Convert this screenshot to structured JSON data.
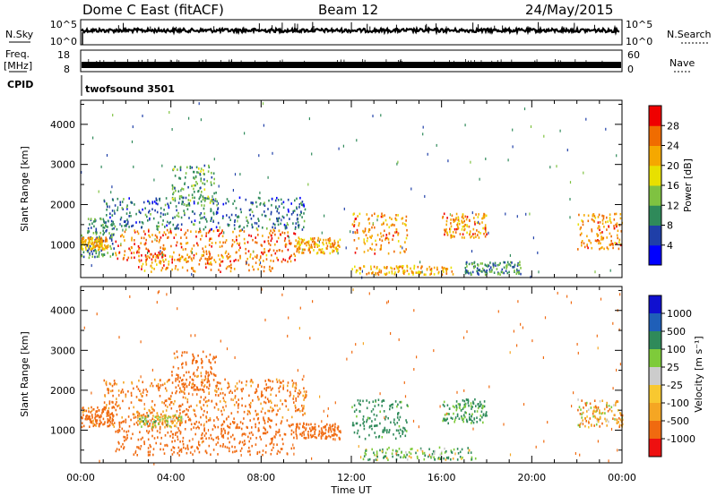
{
  "header": {
    "radar_title": "Dome C East (fitACF)",
    "beam": "Beam 12",
    "date": "24/May/2015"
  },
  "noise_panel": {
    "left_label": "N.Sky",
    "right_label": "N.Search",
    "tick_top": "10^5",
    "tick_bottom": "10^0",
    "ytype": "log"
  },
  "freq_panel": {
    "left_label_line1": "Freq.",
    "left_label_line2": "[MHz]",
    "left_tick_top": "18",
    "left_tick_bottom": "8",
    "right_label": "Nave",
    "right_tick_top": "60",
    "right_tick_bottom": "0"
  },
  "cpid_panel": {
    "label": "CPID",
    "value": "twofsound 3501"
  },
  "time_axis": {
    "label": "Time UT",
    "ticks": [
      "00:00",
      "04:00",
      "08:00",
      "12:00",
      "16:00",
      "20:00",
      "00:00"
    ],
    "hours": [
      0,
      4,
      8,
      12,
      16,
      20,
      24
    ]
  },
  "power_panel": {
    "ylabel": "Slant Range [km]",
    "yticks": [
      "1000",
      "2000",
      "3000",
      "4000"
    ],
    "colorbar_label": "Power [dB]",
    "colorbar_ticks": [
      "4",
      "8",
      "12",
      "16",
      "20",
      "24",
      "28"
    ]
  },
  "velocity_panel": {
    "ylabel": "Slant Range [km]",
    "yticks": [
      "1000",
      "2000",
      "3000",
      "4000"
    ],
    "colorbar_label": "Velocity  [m s⁻¹]",
    "colorbar_ticks": [
      "1000",
      "500",
      "100",
      "25",
      "-25",
      "-100",
      "-500",
      "-1000"
    ]
  },
  "chart_data": [
    {
      "type": "heatmap",
      "title": "Power",
      "x_units": "hours UT",
      "xlim": [
        0,
        24
      ],
      "y_units": "km",
      "ylim": [
        180,
        4600
      ],
      "colorbar": {
        "units": "dB",
        "range": [
          0,
          32
        ],
        "colors": [
          "#0000ff",
          "#1f3fa8",
          "#2f8a5a",
          "#7fc241",
          "#e8e000",
          "#f5a800",
          "#f06c00",
          "#ef0000"
        ]
      },
      "regions": [
        {
          "t": [
            0.0,
            1.5
          ],
          "r": [
            700,
            1700
          ],
          "dB": 10
        },
        {
          "t": [
            0.0,
            1.2
          ],
          "r": [
            900,
            1200
          ],
          "dB": 22
        },
        {
          "t": [
            1.0,
            10.0
          ],
          "r": [
            1400,
            2200
          ],
          "dB": 8
        },
        {
          "t": [
            1.5,
            9.5
          ],
          "r": [
            600,
            1400
          ],
          "dB": 26
        },
        {
          "t": [
            2.5,
            8.5
          ],
          "r": [
            350,
            800
          ],
          "dB": 24
        },
        {
          "t": [
            4.0,
            6.0
          ],
          "r": [
            2000,
            3000
          ],
          "dB": 12
        },
        {
          "t": [
            9.5,
            11.5
          ],
          "r": [
            800,
            1200
          ],
          "dB": 22
        },
        {
          "t": [
            12.0,
            14.5
          ],
          "r": [
            800,
            1800
          ],
          "dB": 24
        },
        {
          "t": [
            12.0,
            16.5
          ],
          "r": [
            280,
            500
          ],
          "dB": 22
        },
        {
          "t": [
            16.0,
            18.0
          ],
          "r": [
            1200,
            1800
          ],
          "dB": 24
        },
        {
          "t": [
            17.0,
            19.5
          ],
          "r": [
            280,
            600
          ],
          "dB": 10
        },
        {
          "t": [
            22.0,
            24.0
          ],
          "r": [
            900,
            1800
          ],
          "dB": 24
        }
      ]
    },
    {
      "type": "heatmap",
      "title": "Velocity",
      "x_units": "hours UT",
      "xlim": [
        0,
        24
      ],
      "y_units": "km",
      "ylim": [
        180,
        4600
      ],
      "colorbar": {
        "units": "m s-1",
        "range": [
          -1000,
          1000
        ],
        "colors": [
          "#ee1010",
          "#f06a10",
          "#f5a623",
          "#f8c830",
          "#cccccc",
          "#7ecb3a",
          "#2f8a5a",
          "#1f5fb8",
          "#1010d0"
        ]
      },
      "regions": [
        {
          "t": [
            0.0,
            1.5
          ],
          "r": [
            1100,
            1600
          ],
          "v": -200
        },
        {
          "t": [
            1.0,
            10.0
          ],
          "r": [
            1300,
            2300
          ],
          "v": -150
        },
        {
          "t": [
            1.5,
            9.5
          ],
          "r": [
            400,
            1300
          ],
          "v": -300
        },
        {
          "t": [
            4.0,
            6.0
          ],
          "r": [
            2000,
            3000
          ],
          "v": -200
        },
        {
          "t": [
            2.5,
            4.5
          ],
          "r": [
            1100,
            1400
          ],
          "v": 0
        },
        {
          "t": [
            9.5,
            11.5
          ],
          "r": [
            800,
            1200
          ],
          "v": -300
        },
        {
          "t": [
            12.0,
            14.5
          ],
          "r": [
            800,
            1800
          ],
          "v": 200
        },
        {
          "t": [
            12.5,
            17.5
          ],
          "r": [
            280,
            600
          ],
          "v": 80
        },
        {
          "t": [
            16.0,
            18.0
          ],
          "r": [
            1200,
            1800
          ],
          "v": 150
        },
        {
          "t": [
            22.0,
            24.0
          ],
          "r": [
            1100,
            1800
          ],
          "v": -60
        }
      ]
    }
  ]
}
